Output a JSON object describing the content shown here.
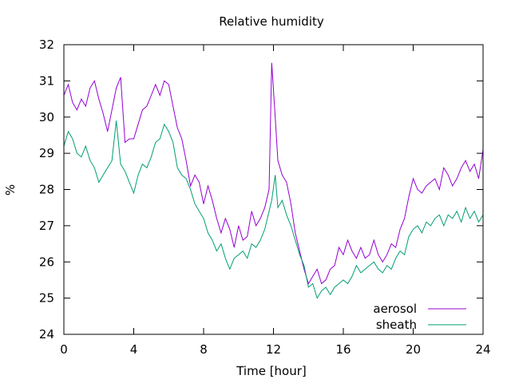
{
  "chart_data": {
    "type": "line",
    "title": "Relative humidity",
    "xlabel": "Time [hour]",
    "ylabel": "%",
    "xlim": [
      0,
      24
    ],
    "ylim": [
      24,
      32
    ],
    "xticks": [
      0,
      4,
      8,
      12,
      16,
      20,
      24
    ],
    "yticks": [
      24,
      25,
      26,
      27,
      28,
      29,
      30,
      31,
      32
    ],
    "grid": false,
    "legend_position": "bottom-right",
    "series": [
      {
        "name": "aerosol",
        "color": "#9400d3",
        "x": [
          0,
          0.25,
          0.5,
          0.75,
          1,
          1.25,
          1.5,
          1.75,
          2,
          2.25,
          2.5,
          2.75,
          3,
          3.25,
          3.5,
          3.75,
          4,
          4.25,
          4.5,
          4.75,
          5,
          5.25,
          5.5,
          5.75,
          6,
          6.25,
          6.5,
          6.75,
          7,
          7.25,
          7.5,
          7.75,
          8,
          8.25,
          8.5,
          8.75,
          9,
          9.25,
          9.5,
          9.75,
          10,
          10.25,
          10.5,
          10.75,
          11,
          11.25,
          11.5,
          11.75,
          11.9,
          12.1,
          12.25,
          12.5,
          12.75,
          13,
          13.25,
          13.5,
          13.75,
          14,
          14.25,
          14.5,
          14.75,
          15,
          15.25,
          15.5,
          15.75,
          16,
          16.25,
          16.5,
          16.75,
          17,
          17.25,
          17.5,
          17.75,
          18,
          18.25,
          18.5,
          18.75,
          19,
          19.25,
          19.5,
          19.75,
          20,
          20.25,
          20.5,
          20.75,
          21,
          21.25,
          21.5,
          21.75,
          22,
          22.25,
          22.5,
          22.75,
          23,
          23.25,
          23.5,
          23.75,
          24
        ],
        "y": [
          30.6,
          30.9,
          30.4,
          30.2,
          30.5,
          30.3,
          30.8,
          31.0,
          30.5,
          30.1,
          29.6,
          30.2,
          30.8,
          31.1,
          29.3,
          29.4,
          29.4,
          29.8,
          30.2,
          30.3,
          30.6,
          30.9,
          30.6,
          31.0,
          30.9,
          30.3,
          29.7,
          29.4,
          28.8,
          28.1,
          28.4,
          28.2,
          27.6,
          28.1,
          27.7,
          27.2,
          26.8,
          27.2,
          26.9,
          26.4,
          27.0,
          26.6,
          26.7,
          27.4,
          27.0,
          27.2,
          27.5,
          28.0,
          31.5,
          30.0,
          28.8,
          28.4,
          28.2,
          27.6,
          26.8,
          26.3,
          25.8,
          25.4,
          25.6,
          25.8,
          25.4,
          25.5,
          25.8,
          25.9,
          26.4,
          26.2,
          26.6,
          26.3,
          26.1,
          26.4,
          26.1,
          26.2,
          26.6,
          26.2,
          26.0,
          26.2,
          26.5,
          26.4,
          26.9,
          27.2,
          27.8,
          28.3,
          28.0,
          27.9,
          28.1,
          28.2,
          28.3,
          28.0,
          28.6,
          28.4,
          28.1,
          28.3,
          28.6,
          28.8,
          28.5,
          28.7,
          28.3,
          29.1
        ]
      },
      {
        "name": "sheath",
        "color": "#009e73",
        "x": [
          0,
          0.25,
          0.5,
          0.75,
          1,
          1.25,
          1.5,
          1.75,
          2,
          2.25,
          2.5,
          2.75,
          3,
          3.25,
          3.5,
          3.75,
          4,
          4.25,
          4.5,
          4.75,
          5,
          5.25,
          5.5,
          5.75,
          6,
          6.25,
          6.5,
          6.75,
          7,
          7.25,
          7.5,
          7.75,
          8,
          8.25,
          8.5,
          8.75,
          9,
          9.25,
          9.5,
          9.75,
          10,
          10.25,
          10.5,
          10.75,
          11,
          11.25,
          11.5,
          11.75,
          11.9,
          12.1,
          12.25,
          12.5,
          12.75,
          13,
          13.25,
          13.5,
          13.75,
          14,
          14.25,
          14.5,
          14.75,
          15,
          15.25,
          15.5,
          15.75,
          16,
          16.25,
          16.5,
          16.75,
          17,
          17.25,
          17.5,
          17.75,
          18,
          18.25,
          18.5,
          18.75,
          19,
          19.25,
          19.5,
          19.75,
          20,
          20.25,
          20.5,
          20.75,
          21,
          21.25,
          21.5,
          21.75,
          22,
          22.25,
          22.5,
          22.75,
          23,
          23.25,
          23.5,
          23.75,
          24
        ],
        "y": [
          29.2,
          29.6,
          29.4,
          29.0,
          28.9,
          29.2,
          28.8,
          28.6,
          28.2,
          28.4,
          28.6,
          28.8,
          29.9,
          28.7,
          28.5,
          28.2,
          27.9,
          28.4,
          28.7,
          28.6,
          28.9,
          29.3,
          29.4,
          29.8,
          29.6,
          29.3,
          28.6,
          28.4,
          28.3,
          28.0,
          27.6,
          27.4,
          27.2,
          26.8,
          26.6,
          26.3,
          26.5,
          26.1,
          25.8,
          26.1,
          26.2,
          26.3,
          26.1,
          26.5,
          26.4,
          26.6,
          26.9,
          27.4,
          27.7,
          28.4,
          27.5,
          27.7,
          27.3,
          27.0,
          26.6,
          26.2,
          25.9,
          25.3,
          25.4,
          25.0,
          25.2,
          25.3,
          25.1,
          25.3,
          25.4,
          25.5,
          25.4,
          25.6,
          25.9,
          25.7,
          25.8,
          25.9,
          26.0,
          25.8,
          25.7,
          25.9,
          25.8,
          26.1,
          26.3,
          26.2,
          26.7,
          26.9,
          27.0,
          26.8,
          27.1,
          27.0,
          27.2,
          27.3,
          27.0,
          27.3,
          27.2,
          27.4,
          27.1,
          27.5,
          27.2,
          27.4,
          27.1,
          27.3
        ]
      }
    ]
  }
}
